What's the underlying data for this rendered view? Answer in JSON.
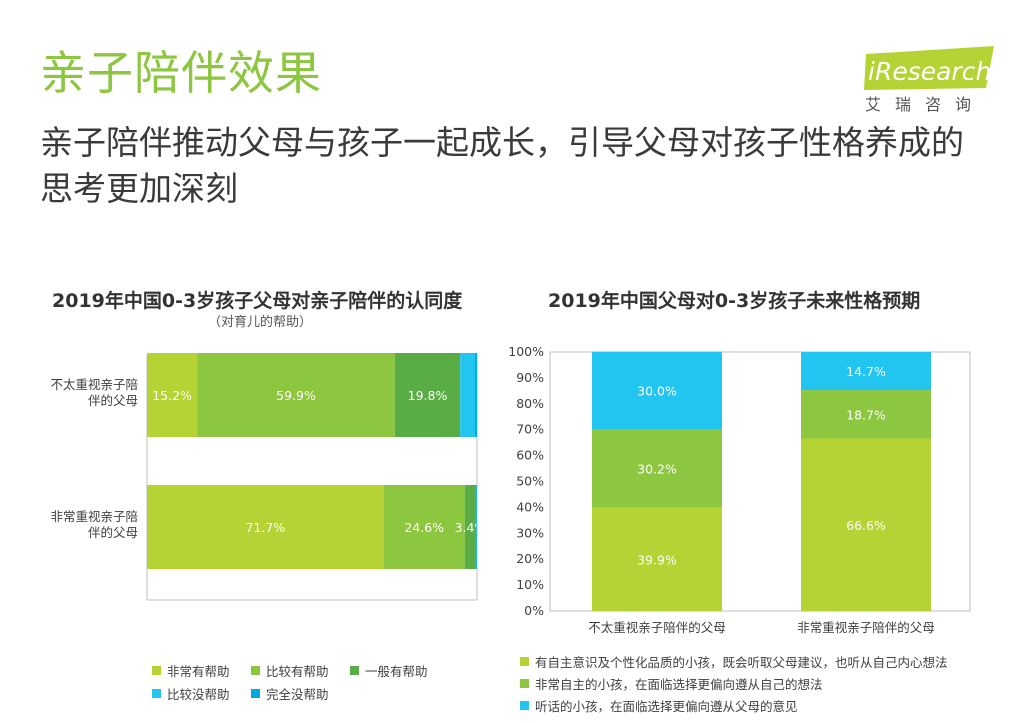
{
  "header": {
    "title": "亲子陪伴效果",
    "subtitle": "亲子陪伴推动父母与孩子一起成长，引导父母对孩子性格养成的思考更加深刻"
  },
  "logo": {
    "brand": "iResearch",
    "cn": "艾瑞咨询",
    "accent": "#b5d334"
  },
  "colors": {
    "c1": "#b5d334",
    "c2": "#8dc63f",
    "c3": "#5aac44",
    "c4": "#22c4f0",
    "c5": "#00a8e6"
  },
  "chart_data": [
    {
      "type": "bar",
      "orientation": "horizontal-stacked",
      "title": "2019年中国0-3岁孩子父母对亲子陪伴的认同度",
      "subtitle": "（对育儿的帮助）",
      "categories": [
        "不太重视亲子陪伴的父母",
        "非常重视亲子陪伴的父母"
      ],
      "category_lines": [
        [
          "不太重视亲子陪",
          "伴的父母"
        ],
        [
          "非常重视亲子陪",
          "伴的父母"
        ]
      ],
      "series": [
        {
          "name": "非常有帮助",
          "values": [
            15.2,
            71.7
          ],
          "labels": [
            "15.2%",
            "71.7%"
          ]
        },
        {
          "name": "比较有帮助",
          "values": [
            59.9,
            24.6
          ],
          "labels": [
            "59.9%",
            "24.6%"
          ]
        },
        {
          "name": "一般有帮助",
          "values": [
            19.8,
            3.4
          ],
          "labels": [
            "19.8%",
            "3.4%"
          ]
        },
        {
          "name": "比较没帮助",
          "values": [
            4.5,
            0.2
          ],
          "labels": [
            "",
            ""
          ]
        },
        {
          "name": "完全没帮助",
          "values": [
            0.6,
            0.1
          ],
          "labels": [
            "",
            ""
          ]
        }
      ],
      "xlim": [
        0,
        100
      ]
    },
    {
      "type": "bar",
      "orientation": "vertical-stacked",
      "title": "2019年中国父母对0-3岁孩子未来性格预期",
      "categories": [
        "不太重视亲子陪伴的父母",
        "非常重视亲子陪伴的父母"
      ],
      "yticks": [
        "0%",
        "10%",
        "20%",
        "30%",
        "40%",
        "50%",
        "60%",
        "70%",
        "80%",
        "90%",
        "100%"
      ],
      "ylim": [
        0,
        100
      ],
      "series": [
        {
          "name": "有自主意识及个性化品质的小孩，既会听取父母建议，也听从自己内心想法",
          "values": [
            39.9,
            66.6
          ],
          "labels": [
            "39.9%",
            "66.6%"
          ]
        },
        {
          "name": "非常自主的小孩，在面临选择更偏向遵从自己的想法",
          "values": [
            30.2,
            18.7
          ],
          "labels": [
            "30.2%",
            "18.7%"
          ]
        },
        {
          "name": "听话的小孩，在面临选择更偏向遵从父母的意见",
          "values": [
            30.0,
            14.7
          ],
          "labels": [
            "30.0%",
            "14.7%"
          ]
        }
      ]
    }
  ]
}
